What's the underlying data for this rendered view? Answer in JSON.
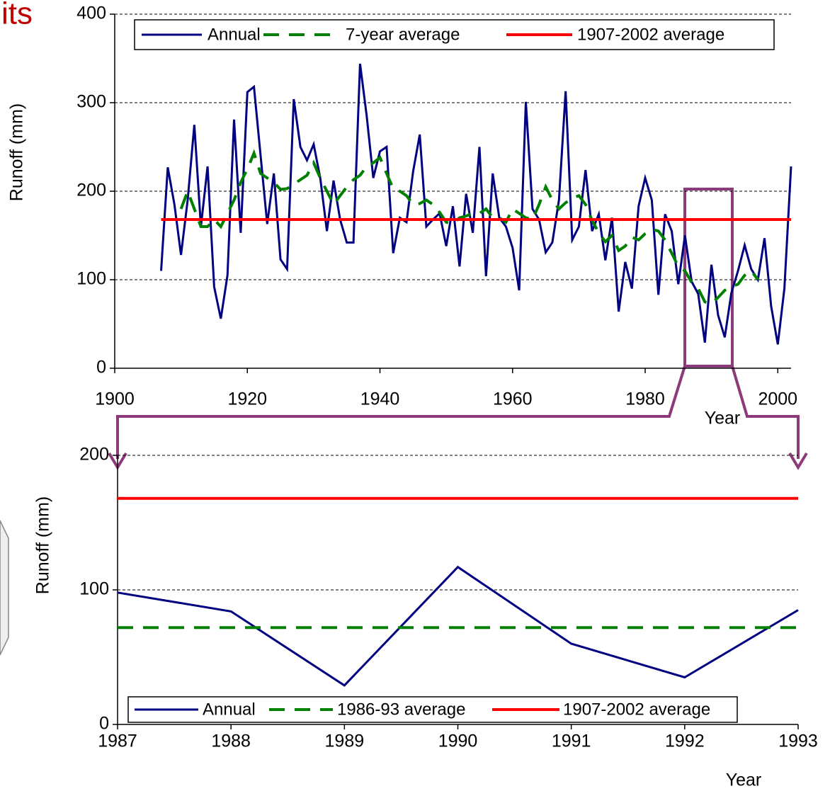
{
  "slide_title_fragment": "its",
  "chart_data": [
    {
      "type": "line",
      "xlabel": "Year",
      "ylabel": "Runoff (mm)",
      "x": [
        1907,
        1908,
        1909,
        1910,
        1911,
        1912,
        1913,
        1914,
        1915,
        1916,
        1917,
        1918,
        1919,
        1920,
        1921,
        1922,
        1923,
        1924,
        1925,
        1926,
        1927,
        1928,
        1929,
        1930,
        1931,
        1932,
        1933,
        1934,
        1935,
        1936,
        1937,
        1938,
        1939,
        1940,
        1941,
        1942,
        1943,
        1944,
        1945,
        1946,
        1947,
        1948,
        1949,
        1950,
        1951,
        1952,
        1953,
        1954,
        1955,
        1956,
        1957,
        1958,
        1959,
        1960,
        1961,
        1962,
        1963,
        1964,
        1965,
        1966,
        1967,
        1968,
        1969,
        1970,
        1971,
        1972,
        1973,
        1974,
        1975,
        1976,
        1977,
        1978,
        1979,
        1980,
        1981,
        1982,
        1983,
        1984,
        1985,
        1986,
        1987,
        1988,
        1989,
        1990,
        1991,
        1992,
        1993,
        1994,
        1995,
        1996,
        1997,
        1998,
        1999,
        2000,
        2001,
        2002
      ],
      "series": [
        {
          "name": "Annual",
          "color": "#000080",
          "dashed": false,
          "values": [
            110,
            227,
            185,
            128,
            190,
            275,
            160,
            228,
            92,
            56,
            105,
            281,
            153,
            312,
            318,
            240,
            163,
            220,
            123,
            112,
            304,
            250,
            235,
            253,
            215,
            155,
            212,
            168,
            142,
            142,
            344,
            285,
            215,
            245,
            250,
            130,
            170,
            165,
            222,
            264,
            160,
            168,
            175,
            138,
            183,
            115,
            197,
            153,
            250,
            104,
            220,
            170,
            160,
            136,
            88,
            301,
            180,
            168,
            131,
            142,
            190,
            313,
            145,
            160,
            224,
            155,
            174,
            122,
            170,
            64,
            120,
            90,
            183,
            215,
            190,
            83,
            174,
            155,
            95,
            150,
            98,
            84,
            29,
            117,
            60,
            35,
            85,
            110,
            139,
            112,
            100,
            147,
            70,
            27,
            90,
            228
          ]
        },
        {
          "name": "7-year average",
          "color": "#008000",
          "dashed": true,
          "values": [
            null,
            null,
            null,
            180,
            200,
            180,
            160,
            160,
            168,
            160,
            175,
            190,
            210,
            225,
            243,
            220,
            215,
            210,
            202,
            203,
            208,
            213,
            218,
            232,
            215,
            200,
            185,
            195,
            205,
            213,
            218,
            228,
            232,
            238,
            220,
            203,
            200,
            195,
            185,
            186,
            190,
            185,
            176,
            165,
            163,
            170,
            172,
            175,
            175,
            180,
            170,
            170,
            165,
            180,
            175,
            170,
            168,
            185,
            205,
            190,
            180,
            187,
            192,
            195,
            185,
            167,
            153,
            143,
            150,
            133,
            138,
            148,
            145,
            152,
            157,
            155,
            145,
            130,
            115,
            110,
            97,
            90,
            75,
            73,
            80,
            88,
            92,
            95,
            105,
            110,
            100,
            null,
            null,
            null,
            null,
            null
          ]
        },
        {
          "name": "1907-2002 average",
          "color": "#ff0000",
          "dashed": false,
          "x": [
            1907,
            2002
          ],
          "values": [
            168,
            168
          ]
        }
      ],
      "xlim": [
        1900,
        2002
      ],
      "xticks": [
        1900,
        1920,
        1940,
        1960,
        1980,
        2000
      ],
      "ylim": [
        0,
        400
      ],
      "yticks": [
        0,
        100,
        200,
        300,
        400
      ],
      "grid": true
    },
    {
      "type": "line",
      "xlabel": "Year",
      "ylabel": "Runoff (mm)",
      "x": [
        1987,
        1988,
        1989,
        1990,
        1991,
        1992,
        1993
      ],
      "series": [
        {
          "name": "Annual",
          "color": "#000080",
          "dashed": false,
          "values": [
            98,
            84,
            29,
            117,
            60,
            35,
            85
          ]
        },
        {
          "name": "1986-93 average",
          "color": "#008000",
          "dashed": true,
          "x": [
            1987,
            1993
          ],
          "values": [
            72,
            72
          ]
        },
        {
          "name": "1907-2002 average",
          "color": "#ff0000",
          "dashed": false,
          "x": [
            1987,
            1993
          ],
          "values": [
            168,
            168
          ]
        }
      ],
      "xlim": [
        1987,
        1993
      ],
      "xticks": [
        1987,
        1988,
        1989,
        1990,
        1991,
        1992,
        1993
      ],
      "ylim": [
        0,
        200
      ],
      "yticks": [
        0,
        100,
        200
      ],
      "grid": true
    }
  ]
}
